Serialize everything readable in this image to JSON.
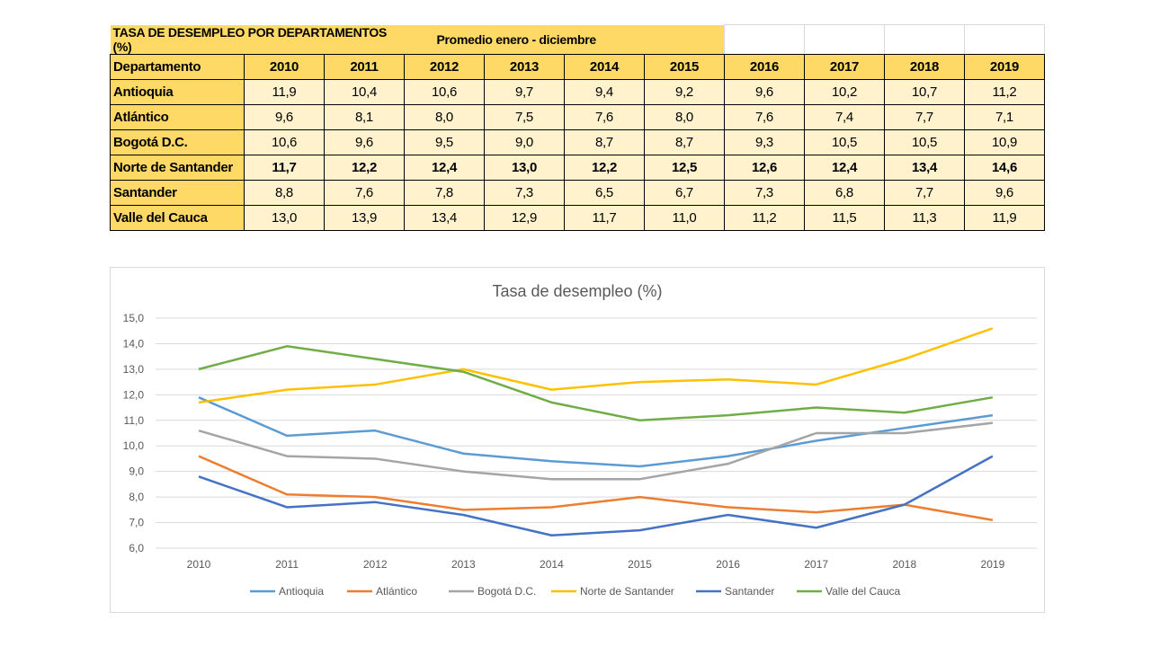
{
  "table": {
    "title": "TASA DE DESEMPLEO POR DEPARTAMENTOS (%)",
    "subtitle": "Promedio enero  - diciembre",
    "header_label": "Departamento",
    "years": [
      "2010",
      "2011",
      "2012",
      "2013",
      "2014",
      "2015",
      "2016",
      "2017",
      "2018",
      "2019"
    ],
    "rows": [
      {
        "name": "Antioquia",
        "values": [
          "11,9",
          "10,4",
          "10,6",
          "9,7",
          "9,4",
          "9,2",
          "9,6",
          "10,2",
          "10,7",
          "11,2"
        ],
        "bold": false
      },
      {
        "name": "Atlántico",
        "values": [
          "9,6",
          "8,1",
          "8,0",
          "7,5",
          "7,6",
          "8,0",
          "7,6",
          "7,4",
          "7,7",
          "7,1"
        ],
        "bold": false
      },
      {
        "name": "Bogotá D.C.",
        "values": [
          "10,6",
          "9,6",
          "9,5",
          "9,0",
          "8,7",
          "8,7",
          "9,3",
          "10,5",
          "10,5",
          "10,9"
        ],
        "bold": false
      },
      {
        "name": "Norte de Santander",
        "values": [
          "11,7",
          "12,2",
          "12,4",
          "13,0",
          "12,2",
          "12,5",
          "12,6",
          "12,4",
          "13,4",
          "14,6"
        ],
        "bold": true
      },
      {
        "name": "Santander",
        "values": [
          "8,8",
          "7,6",
          "7,8",
          "7,3",
          "6,5",
          "6,7",
          "7,3",
          "6,8",
          "7,7",
          "9,6"
        ],
        "bold": false
      },
      {
        "name": "Valle del Cauca",
        "values": [
          "13,0",
          "13,9",
          "13,4",
          "12,9",
          "11,7",
          "11,0",
          "11,2",
          "11,5",
          "11,3",
          "11,9"
        ],
        "bold": false
      }
    ]
  },
  "chart_data": {
    "type": "line",
    "title": "Tasa de desempleo  (%)",
    "x": [
      "2010",
      "2011",
      "2012",
      "2013",
      "2014",
      "2015",
      "2016",
      "2017",
      "2018",
      "2019"
    ],
    "ylim": [
      6,
      15
    ],
    "yticks": [
      "6,0",
      "7,0",
      "8,0",
      "9,0",
      "10,0",
      "11,0",
      "12,0",
      "13,0",
      "14,0",
      "15,0"
    ],
    "grid": true,
    "legend": "bottom",
    "series": [
      {
        "name": "Antioquia",
        "color": "#5B9BD5",
        "values": [
          11.9,
          10.4,
          10.6,
          9.7,
          9.4,
          9.2,
          9.6,
          10.2,
          10.7,
          11.2
        ]
      },
      {
        "name": "Atlántico",
        "color": "#ED7D31",
        "values": [
          9.6,
          8.1,
          8.0,
          7.5,
          7.6,
          8.0,
          7.6,
          7.4,
          7.7,
          7.1
        ]
      },
      {
        "name": "Bogotá D.C.",
        "color": "#A5A5A5",
        "values": [
          10.6,
          9.6,
          9.5,
          9.0,
          8.7,
          8.7,
          9.3,
          10.5,
          10.5,
          10.9
        ]
      },
      {
        "name": "Norte de Santander",
        "color": "#FFC000",
        "values": [
          11.7,
          12.2,
          12.4,
          13.0,
          12.2,
          12.5,
          12.6,
          12.4,
          13.4,
          14.6
        ]
      },
      {
        "name": "Santander",
        "color": "#4472C4",
        "values": [
          8.8,
          7.6,
          7.8,
          7.3,
          6.5,
          6.7,
          7.3,
          6.8,
          7.7,
          9.6
        ]
      },
      {
        "name": "Valle del Cauca",
        "color": "#70AD47",
        "values": [
          13.0,
          13.9,
          13.4,
          12.9,
          11.7,
          11.0,
          11.2,
          11.5,
          11.3,
          11.9
        ]
      }
    ]
  }
}
